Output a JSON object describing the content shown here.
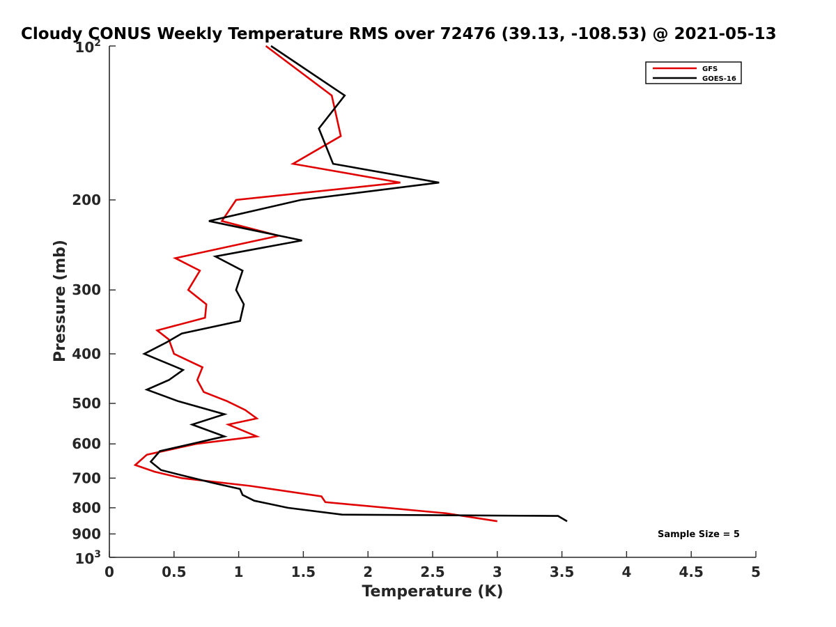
{
  "chart_data": {
    "type": "line",
    "title": "Cloudy CONUS Weekly Temperature RMS over 72476 (39.13, -108.53) @ 2021-05-13",
    "xlabel": "Temperature (K)",
    "ylabel": "Pressure (mb)",
    "xlim": [
      0,
      5
    ],
    "ylim": [
      1000,
      100
    ],
    "yscale": "log",
    "y_reversed": true,
    "x_ticks": [
      0,
      0.5,
      1,
      1.5,
      2,
      2.5,
      3,
      3.5,
      4,
      4.5,
      5
    ],
    "x_tick_labels": [
      "0",
      "0.5",
      "1",
      "1.5",
      "2",
      "2.5",
      "3",
      "3.5",
      "4",
      "4.5",
      "5"
    ],
    "y_ticks": [
      200,
      300,
      400,
      500,
      600,
      700,
      800,
      900
    ],
    "y_tick_labels": [
      "200",
      "300",
      "400",
      "500",
      "600",
      "700",
      "800",
      "900"
    ],
    "y_edge_ticks": [
      {
        "value": 100,
        "base": "10",
        "exp": "2"
      },
      {
        "value": 1000,
        "base": "10",
        "exp": "3"
      }
    ],
    "grid": false,
    "legend_position": "top-right",
    "series": [
      {
        "name": "GFS",
        "color": "#e00000",
        "points": [
          [
            1.21,
            100
          ],
          [
            1.72,
            125
          ],
          [
            1.79,
            150
          ],
          [
            1.42,
            170
          ],
          [
            2.25,
            185
          ],
          [
            0.98,
            200
          ],
          [
            0.87,
            220
          ],
          [
            1.31,
            235
          ],
          [
            0.51,
            260
          ],
          [
            0.7,
            275
          ],
          [
            0.61,
            300
          ],
          [
            0.75,
            320
          ],
          [
            0.74,
            340
          ],
          [
            0.37,
            360
          ],
          [
            0.46,
            375
          ],
          [
            0.5,
            400
          ],
          [
            0.72,
            425
          ],
          [
            0.68,
            450
          ],
          [
            0.73,
            475
          ],
          [
            0.91,
            495
          ],
          [
            1.05,
            515
          ],
          [
            1.14,
            535
          ],
          [
            0.92,
            550
          ],
          [
            1.14,
            580
          ],
          [
            0.67,
            600
          ],
          [
            0.29,
            630
          ],
          [
            0.2,
            660
          ],
          [
            0.35,
            680
          ],
          [
            0.56,
            700
          ],
          [
            1.09,
            725
          ],
          [
            1.64,
            760
          ],
          [
            1.67,
            780
          ],
          [
            2.6,
            820
          ],
          [
            3.0,
            850
          ]
        ]
      },
      {
        "name": "GOES-16",
        "color": "#000000",
        "points": [
          [
            1.25,
            100
          ],
          [
            1.82,
            125
          ],
          [
            1.62,
            145
          ],
          [
            1.73,
            170
          ],
          [
            2.55,
            185
          ],
          [
            1.48,
            200
          ],
          [
            0.77,
            220
          ],
          [
            1.49,
            240
          ],
          [
            0.82,
            258
          ],
          [
            1.03,
            275
          ],
          [
            0.98,
            300
          ],
          [
            1.04,
            320
          ],
          [
            1.01,
            345
          ],
          [
            0.56,
            365
          ],
          [
            0.44,
            380
          ],
          [
            0.27,
            400
          ],
          [
            0.57,
            430
          ],
          [
            0.46,
            450
          ],
          [
            0.29,
            470
          ],
          [
            0.53,
            495
          ],
          [
            0.89,
            525
          ],
          [
            0.64,
            550
          ],
          [
            0.89,
            580
          ],
          [
            0.39,
            620
          ],
          [
            0.32,
            650
          ],
          [
            0.4,
            675
          ],
          [
            0.55,
            690
          ],
          [
            0.8,
            715
          ],
          [
            1.01,
            735
          ],
          [
            1.03,
            755
          ],
          [
            1.12,
            775
          ],
          [
            1.38,
            800
          ],
          [
            1.8,
            825
          ],
          [
            3.47,
            830
          ],
          [
            3.54,
            850
          ]
        ]
      }
    ],
    "annotation": "Sample Size = 5"
  }
}
